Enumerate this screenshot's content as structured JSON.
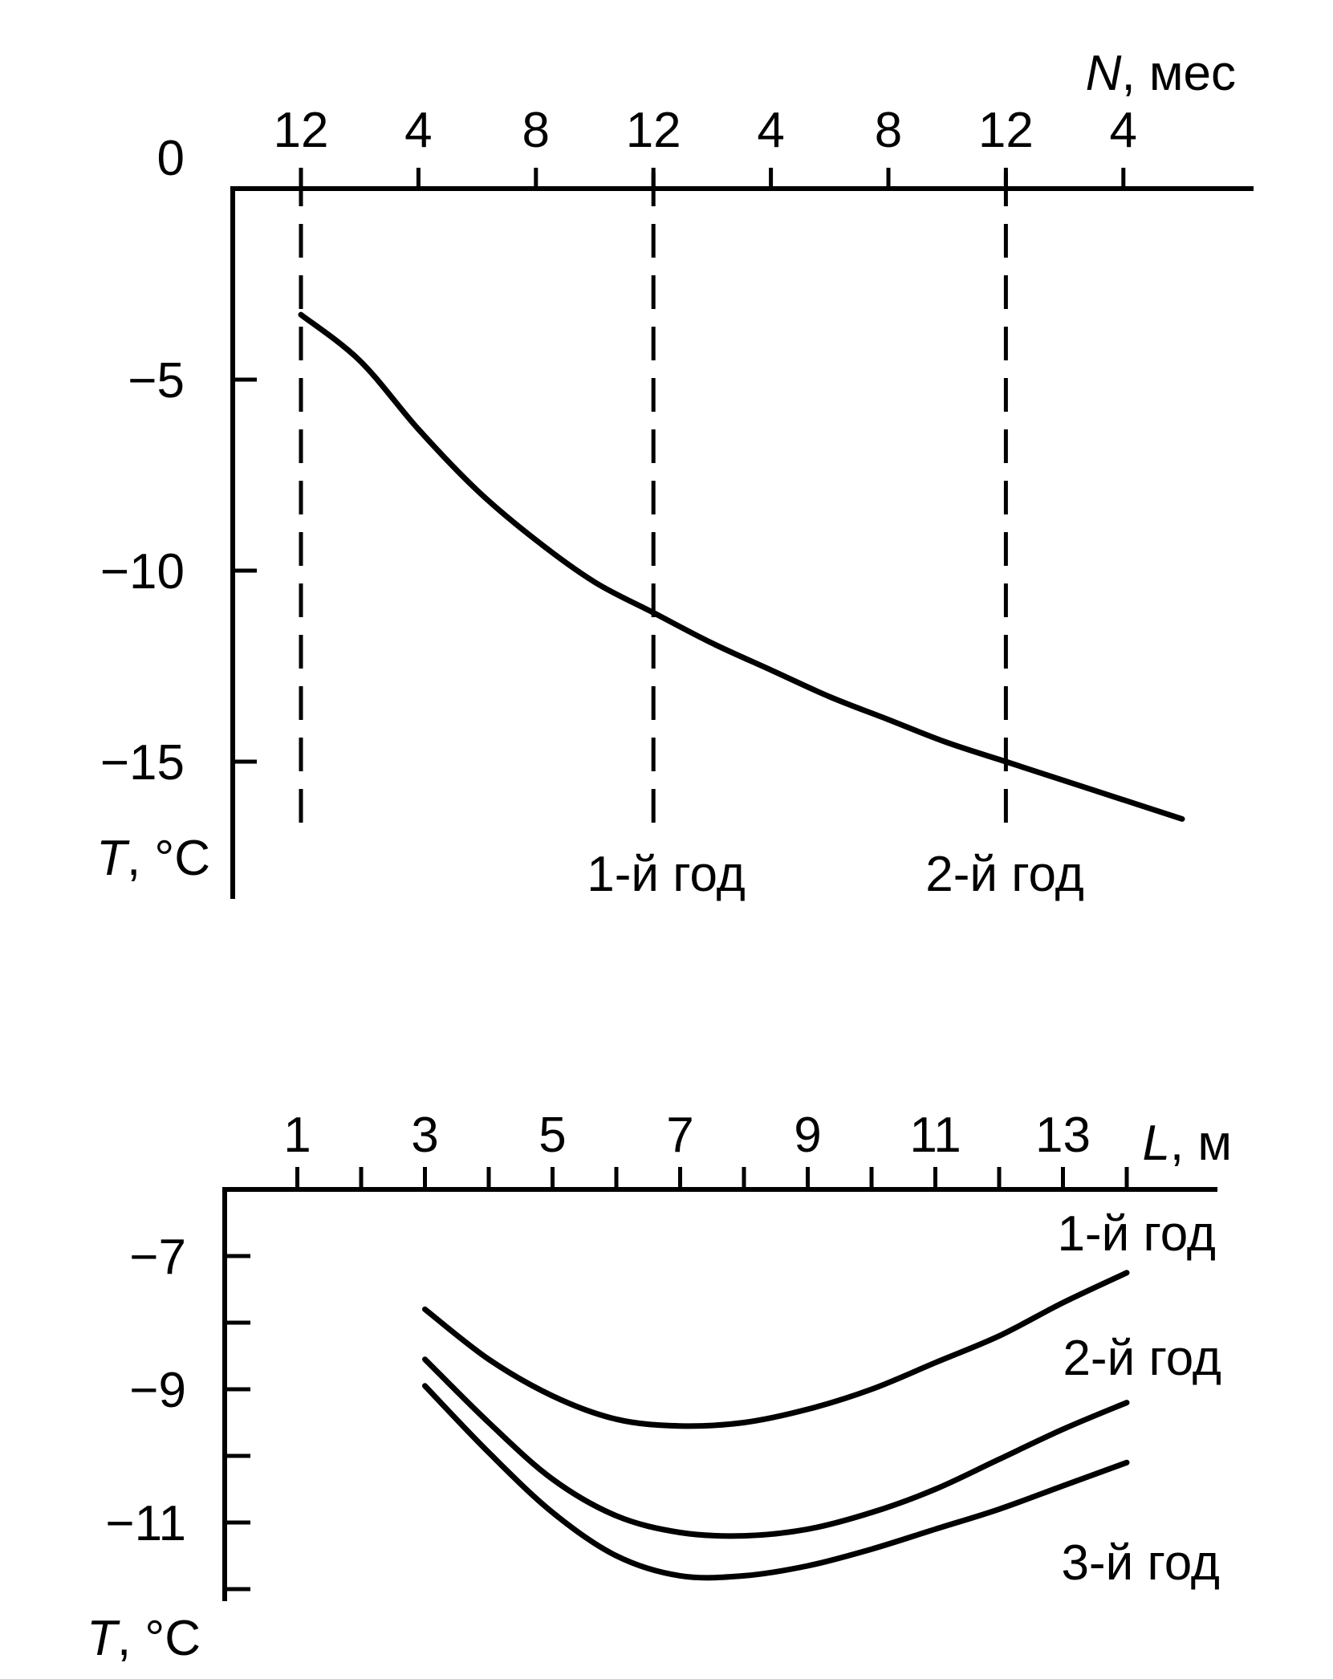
{
  "chart_data": [
    {
      "type": "line",
      "xlabel": "N, мес",
      "xlabel_var": "N",
      "xlabel_unit": ", мес",
      "ylabel": "T, °C",
      "ylabel_var": "T",
      "ylabel_unit": ", °C",
      "x_axis_position": "top",
      "xlim": [
        0,
        30
      ],
      "ylim": [
        -17.8,
        0
      ],
      "x_ticks": [
        {
          "label": "12",
          "value": 0
        },
        {
          "label": "4",
          "value": 4
        },
        {
          "label": "8",
          "value": 8
        },
        {
          "label": "12",
          "value": 12
        },
        {
          "label": "4",
          "value": 16
        },
        {
          "label": "8",
          "value": 20
        },
        {
          "label": "12",
          "value": 24
        },
        {
          "label": "4",
          "value": 28
        }
      ],
      "y_ticks": [
        {
          "label": "0",
          "value": 0
        },
        {
          "label": "−5",
          "value": -5
        },
        {
          "label": "−10",
          "value": -10
        },
        {
          "label": "−15",
          "value": -15
        }
      ],
      "series": [
        {
          "x": [
            0,
            2,
            4,
            6,
            8,
            10,
            12,
            14,
            16,
            18,
            20,
            22,
            24,
            26,
            28,
            30
          ],
          "y": [
            -3.3,
            -4.5,
            -6.3,
            -7.9,
            -9.2,
            -10.3,
            -11.1,
            -11.9,
            -12.6,
            -13.3,
            -13.9,
            -14.5,
            -15.0,
            -15.5,
            -16.0,
            -16.5
          ]
        }
      ],
      "reference_lines": [
        {
          "x": 0,
          "label": ""
        },
        {
          "x": 12,
          "label": "1-й год"
        },
        {
          "x": 24,
          "label": "2-й год"
        }
      ],
      "grid": false
    },
    {
      "type": "line",
      "xlabel": "L, м",
      "xlabel_var": "L",
      "xlabel_unit": ", м",
      "ylabel": "T, °C",
      "ylabel_var": "T",
      "ylabel_unit": ", °C",
      "x_axis_position": "top",
      "xlim": [
        0,
        14.5
      ],
      "ylim": [
        -13.2,
        -6
      ],
      "x_tick_labels": [
        "1",
        "3",
        "5",
        "7",
        "9",
        "11",
        "13"
      ],
      "x_ticks_minor": [
        1,
        2,
        3,
        4,
        5,
        6,
        7,
        8,
        9,
        10,
        11,
        12,
        13,
        14
      ],
      "y_tick_labels": [
        "−7",
        "−9",
        "−11"
      ],
      "y_ticks_minor": [
        -7,
        -8,
        -9,
        -10,
        -11,
        -12
      ],
      "series": [
        {
          "name": "1-й год",
          "x": [
            3,
            4,
            5,
            6,
            7,
            8,
            9,
            10,
            11,
            12,
            13,
            14
          ],
          "y": [
            -7.8,
            -8.55,
            -9.1,
            -9.45,
            -9.55,
            -9.5,
            -9.3,
            -9.0,
            -8.6,
            -8.2,
            -7.7,
            -7.25
          ]
        },
        {
          "name": "2-й год",
          "x": [
            3,
            4,
            5,
            6,
            7,
            8,
            9,
            10,
            11,
            12,
            13,
            14
          ],
          "y": [
            -8.55,
            -9.5,
            -10.35,
            -10.9,
            -11.15,
            -11.2,
            -11.1,
            -10.85,
            -10.5,
            -10.05,
            -9.6,
            -9.2
          ]
        },
        {
          "name": "3-й год",
          "x": [
            3,
            4,
            5,
            6,
            7,
            8,
            9,
            10,
            11,
            12,
            13,
            14
          ],
          "y": [
            -8.95,
            -9.95,
            -10.85,
            -11.5,
            -11.8,
            -11.8,
            -11.65,
            -11.4,
            -11.1,
            -10.8,
            -10.45,
            -10.1
          ]
        }
      ],
      "grid": false
    }
  ]
}
